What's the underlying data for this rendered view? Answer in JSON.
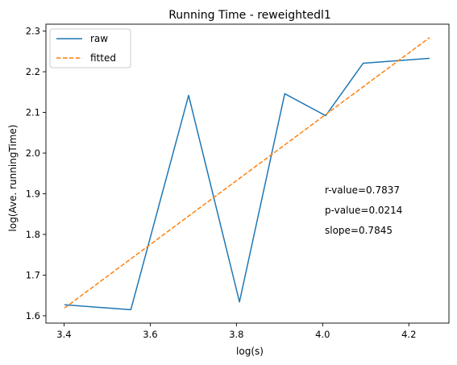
{
  "chart_data": {
    "type": "line",
    "title": "Running Time - reweightedl1",
    "xlabel": "log(s)",
    "ylabel": "log(Ave. runningTime)",
    "xlim": [
      3.358,
      4.293
    ],
    "ylim": [
      1.582,
      2.317
    ],
    "xticks": [
      "3.4",
      "3.6",
      "3.8",
      "4.0",
      "4.2"
    ],
    "yticks": [
      "1.6",
      "1.7",
      "1.8",
      "1.9",
      "2.0",
      "2.1",
      "2.2",
      "2.3"
    ],
    "grid": false,
    "legend_position": "upper-left",
    "series": [
      {
        "name": "raw",
        "style": "solid",
        "color": "#1f77b4",
        "x": [
          3.401,
          3.555,
          3.689,
          3.807,
          3.912,
          4.007,
          4.094,
          4.248
        ],
        "y": [
          1.627,
          1.615,
          2.142,
          1.634,
          2.146,
          2.092,
          2.221,
          2.233
        ]
      },
      {
        "name": "fitted",
        "style": "dashed",
        "color": "#ff7f0e",
        "x": [
          3.401,
          4.248
        ],
        "y": [
          1.619,
          2.284
        ]
      }
    ],
    "annotations": [
      "r-value=0.7837",
      "p-value=0.0214",
      "slope=0.7845"
    ]
  }
}
